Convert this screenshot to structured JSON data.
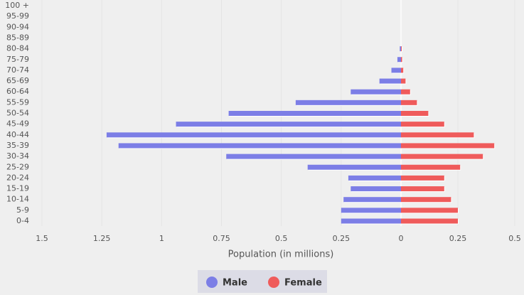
{
  "chart_data": {
    "type": "population-pyramid",
    "x_label": "Population (in millions)",
    "categories": [
      "0-4",
      "5-9",
      "10-14",
      "15-19",
      "20-24",
      "25-29",
      "30-34",
      "35-39",
      "40-44",
      "45-49",
      "50-54",
      "55-59",
      "60-64",
      "65-69",
      "70-74",
      "75-79",
      "80-84",
      "85-89",
      "90-94",
      "95-99",
      "100 +"
    ],
    "series": [
      {
        "name": "Male",
        "color": "#7c7ee6",
        "axis": "x",
        "values": [
          0.25,
          0.25,
          0.24,
          0.21,
          0.22,
          0.39,
          0.73,
          1.18,
          1.23,
          0.94,
          0.72,
          0.44,
          0.21,
          0.09,
          0.04,
          0.015,
          0.005,
          0,
          0,
          0,
          0
        ]
      },
      {
        "name": "Female",
        "color": "#ef5b5b",
        "axis": "x2",
        "values": [
          0.25,
          0.25,
          0.22,
          0.19,
          0.19,
          0.26,
          0.36,
          0.41,
          0.32,
          0.19,
          0.12,
          0.07,
          0.04,
          0.02,
          0.01,
          0.005,
          0.003,
          0,
          0,
          0,
          0
        ]
      }
    ],
    "xlim": [
      1.5,
      0
    ],
    "xticks": [
      1.5,
      1.25,
      1,
      0.75,
      0.5,
      0.25,
      0
    ],
    "x2lim": [
      0,
      0.5
    ],
    "x2ticks": [
      0.25,
      0.5
    ],
    "grid": true
  }
}
